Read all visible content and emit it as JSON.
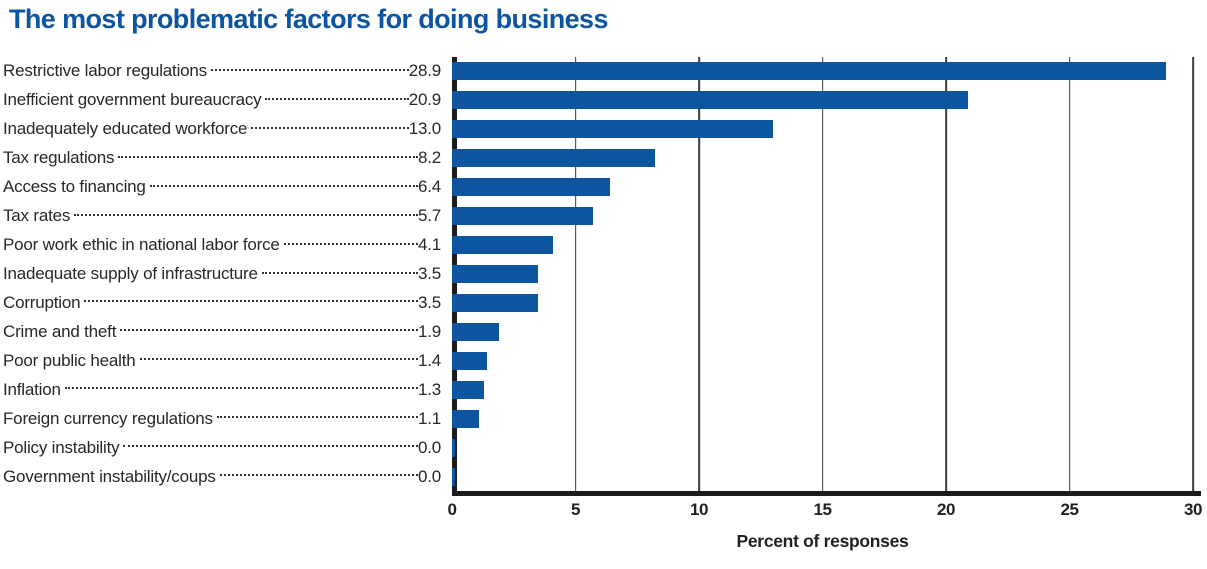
{
  "chart_data": {
    "type": "bar",
    "orientation": "horizontal",
    "title": "The most problematic factors for doing business",
    "categories": [
      "Restrictive labor regulations",
      "Inefficient government bureaucracy",
      "Inadequately educated workforce",
      "Tax regulations",
      "Access to financing",
      "Tax rates",
      "Poor work ethic in national labor force",
      "Inadequate supply of infrastructure",
      "Corruption",
      "Crime and theft",
      "Poor public health",
      "Inflation",
      "Foreign currency regulations",
      "Policy instability",
      "Government instability/coups"
    ],
    "values": [
      28.9,
      20.9,
      13.0,
      8.2,
      6.4,
      5.7,
      4.1,
      3.5,
      3.5,
      1.9,
      1.4,
      1.3,
      1.1,
      0.0,
      0.0
    ],
    "value_labels": [
      "28.9",
      "20.9",
      "13.0",
      "8.2",
      "6.4",
      "5.7",
      "4.1",
      "3.5",
      "3.5",
      "1.9",
      "1.4",
      "1.3",
      "1.1",
      "0.0",
      "0.0"
    ],
    "xlabel": "Percent of responses",
    "xlim": [
      0,
      30
    ],
    "xticks": [
      0,
      5,
      10,
      15,
      20,
      25,
      30
    ],
    "grid": "vertical",
    "legend": "none",
    "colors": {
      "bar": "#0d55a1",
      "title": "#0d55a1",
      "axis": "#1b1b1b",
      "gridline": "#3c3c3c",
      "text": "#231f20"
    }
  }
}
